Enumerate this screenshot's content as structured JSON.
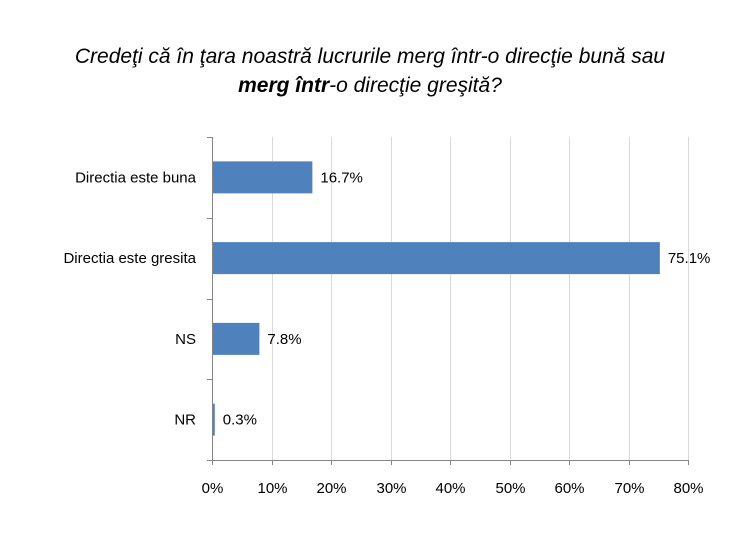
{
  "title": {
    "line1": "Credeţi că în ţara noastră lucrurile merg într-o direcţie bună sau",
    "line2_bold": "merg într",
    "line2_rest": "-o direcţie greşită?"
  },
  "chart_data": {
    "type": "bar",
    "orientation": "horizontal",
    "title": "Credeţi că în ţara noastră lucrurile merg într-o direcţie bună sau merg într-o direcţie greşită?",
    "categories": [
      "Directia este buna",
      "Directia este gresita",
      "NS",
      "NR"
    ],
    "values": [
      16.7,
      75.1,
      7.8,
      0.3
    ],
    "data_labels": [
      "16.7%",
      "75.1%",
      "7.8%",
      "0.3%"
    ],
    "xlim": [
      0,
      80
    ],
    "x_ticks": [
      "0%",
      "10%",
      "20%",
      "30%",
      "40%",
      "50%",
      "60%",
      "70%",
      "80%"
    ],
    "grid": true,
    "bar_color": "#4f81bd",
    "grid_color": "#d9d9d9"
  }
}
